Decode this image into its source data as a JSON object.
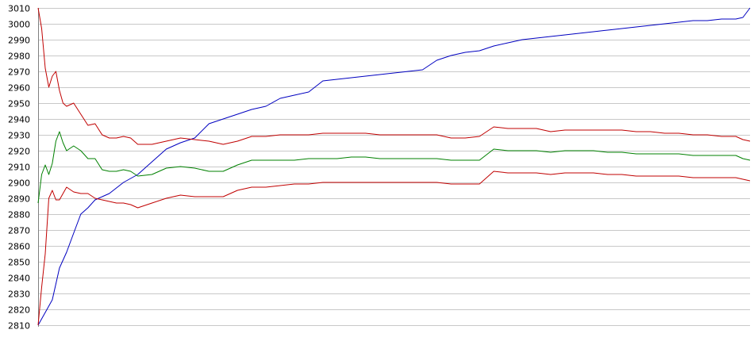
{
  "chart_data": {
    "type": "line",
    "title": "",
    "xlabel": "",
    "ylabel": "",
    "ylim": [
      2810,
      3010
    ],
    "y_ticks": [
      2810,
      2820,
      2830,
      2840,
      2850,
      2860,
      2870,
      2880,
      2890,
      2900,
      2910,
      2920,
      2930,
      2940,
      2950,
      2960,
      2970,
      2980,
      2990,
      3000,
      3010
    ],
    "grid": true,
    "legend": "none",
    "xlim": [
      0,
      100
    ],
    "series": [
      {
        "color": "#0000c0",
        "x": [
          0,
          1,
          2,
          3,
          4,
          5,
          6,
          7,
          8,
          9,
          10,
          12,
          14,
          16,
          18,
          20,
          22,
          24,
          26,
          28,
          30,
          32,
          34,
          36,
          38,
          40,
          42,
          44,
          46,
          48,
          50,
          52,
          54,
          56,
          58,
          60,
          62,
          64,
          66,
          68,
          70,
          72,
          74,
          76,
          78,
          80,
          82,
          84,
          86,
          88,
          90,
          92,
          94,
          96,
          98,
          99,
          100
        ],
        "values": [
          2810,
          2818,
          2826,
          2846,
          2856,
          2868,
          2880,
          2884,
          2889,
          2891,
          2893,
          2900,
          2905,
          2913,
          2921,
          2925,
          2928,
          2937,
          2940,
          2943,
          2946,
          2948,
          2953,
          2955,
          2957,
          2964,
          2965,
          2966,
          2967,
          2968,
          2969,
          2970,
          2971,
          2977,
          2980,
          2982,
          2983,
          2986,
          2988,
          2990,
          2991,
          2992,
          2993,
          2994,
          2995,
          2996,
          2997,
          2998,
          2999,
          3000,
          3001,
          3002,
          3002,
          3003,
          3003,
          3004,
          3010
        ]
      },
      {
        "color": "#c00000",
        "x": [
          0,
          0.5,
          1,
          1.5,
          2,
          2.5,
          3,
          3.5,
          4,
          5,
          6,
          7,
          8,
          9,
          10,
          11,
          12,
          13,
          14,
          16,
          18,
          20,
          22,
          24,
          26,
          28,
          30,
          32,
          34,
          36,
          38,
          40,
          42,
          44,
          46,
          48,
          50,
          52,
          54,
          56,
          58,
          60,
          62,
          64,
          66,
          68,
          70,
          72,
          74,
          76,
          78,
          80,
          82,
          84,
          86,
          88,
          90,
          92,
          94,
          96,
          98,
          99,
          100
        ],
        "values": [
          3010,
          2997,
          2972,
          2960,
          2967,
          2970,
          2958,
          2950,
          2948,
          2950,
          2943,
          2936,
          2937,
          2930,
          2928,
          2928,
          2929,
          2928,
          2924,
          2924,
          2926,
          2928,
          2927,
          2926,
          2924,
          2926,
          2929,
          2929,
          2930,
          2930,
          2930,
          2931,
          2931,
          2931,
          2931,
          2930,
          2930,
          2930,
          2930,
          2930,
          2928,
          2928,
          2929,
          2935,
          2934,
          2934,
          2934,
          2932,
          2933,
          2933,
          2933,
          2933,
          2933,
          2932,
          2932,
          2931,
          2931,
          2930,
          2930,
          2929,
          2929,
          2927,
          2926
        ]
      },
      {
        "color": "#008000",
        "x": [
          0,
          0.5,
          1,
          1.5,
          2,
          2.5,
          3,
          3.5,
          4,
          5,
          6,
          7,
          8,
          9,
          10,
          11,
          12,
          13,
          14,
          16,
          18,
          20,
          22,
          24,
          26,
          28,
          30,
          32,
          34,
          36,
          38,
          40,
          42,
          44,
          46,
          48,
          50,
          52,
          54,
          56,
          58,
          60,
          62,
          64,
          66,
          68,
          70,
          72,
          74,
          76,
          78,
          80,
          82,
          84,
          86,
          88,
          90,
          92,
          94,
          96,
          98,
          99,
          100
        ],
        "values": [
          2887,
          2905,
          2911,
          2905,
          2912,
          2926,
          2932,
          2925,
          2920,
          2923,
          2920,
          2915,
          2915,
          2908,
          2907,
          2907,
          2908,
          2907,
          2904,
          2905,
          2909,
          2910,
          2909,
          2907,
          2907,
          2911,
          2914,
          2914,
          2914,
          2914,
          2915,
          2915,
          2915,
          2916,
          2916,
          2915,
          2915,
          2915,
          2915,
          2915,
          2914,
          2914,
          2914,
          2921,
          2920,
          2920,
          2920,
          2919,
          2920,
          2920,
          2920,
          2919,
          2919,
          2918,
          2918,
          2918,
          2918,
          2917,
          2917,
          2917,
          2917,
          2915,
          2914
        ]
      },
      {
        "color": "#c00000",
        "x": [
          0,
          0.5,
          1,
          1.5,
          2,
          2.5,
          3,
          3.5,
          4,
          5,
          6,
          7,
          8,
          9,
          10,
          11,
          12,
          13,
          14,
          16,
          18,
          20,
          22,
          24,
          26,
          28,
          30,
          32,
          34,
          36,
          38,
          40,
          42,
          44,
          46,
          48,
          50,
          52,
          54,
          56,
          58,
          60,
          62,
          64,
          66,
          68,
          70,
          72,
          74,
          76,
          78,
          80,
          82,
          84,
          86,
          88,
          90,
          92,
          94,
          96,
          98,
          99,
          100
        ],
        "values": [
          2810,
          2834,
          2855,
          2890,
          2895,
          2889,
          2889,
          2893,
          2897,
          2894,
          2893,
          2893,
          2890,
          2889,
          2888,
          2887,
          2887,
          2886,
          2884,
          2887,
          2890,
          2892,
          2891,
          2891,
          2891,
          2895,
          2897,
          2897,
          2898,
          2899,
          2899,
          2900,
          2900,
          2900,
          2900,
          2900,
          2900,
          2900,
          2900,
          2900,
          2899,
          2899,
          2899,
          2907,
          2906,
          2906,
          2906,
          2905,
          2906,
          2906,
          2906,
          2905,
          2905,
          2904,
          2904,
          2904,
          2904,
          2903,
          2903,
          2903,
          2903,
          2902,
          2901
        ]
      }
    ]
  }
}
